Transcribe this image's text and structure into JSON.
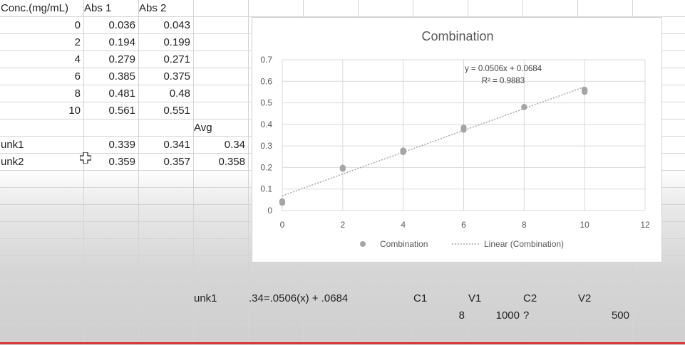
{
  "sheet": {
    "cells": [
      {
        "ref": "A1",
        "text": "Conc.(mg/mL)",
        "align": "l"
      },
      {
        "ref": "B1",
        "text": "Abs 1",
        "align": "l"
      },
      {
        "ref": "C1",
        "text": "Abs 2",
        "align": "l"
      },
      {
        "ref": "A2",
        "text": "0",
        "align": "r"
      },
      {
        "ref": "B2",
        "text": "0.036",
        "align": "r"
      },
      {
        "ref": "C2",
        "text": "0.043",
        "align": "r"
      },
      {
        "ref": "A3",
        "text": "2",
        "align": "r"
      },
      {
        "ref": "B3",
        "text": "0.194",
        "align": "r"
      },
      {
        "ref": "C3",
        "text": "0.199",
        "align": "r"
      },
      {
        "ref": "A4",
        "text": "4",
        "align": "r"
      },
      {
        "ref": "B4",
        "text": "0.279",
        "align": "r"
      },
      {
        "ref": "C4",
        "text": "0.271",
        "align": "r"
      },
      {
        "ref": "A5",
        "text": "6",
        "align": "r"
      },
      {
        "ref": "B5",
        "text": "0.385",
        "align": "r"
      },
      {
        "ref": "C5",
        "text": "0.375",
        "align": "r"
      },
      {
        "ref": "A6",
        "text": "8",
        "align": "r"
      },
      {
        "ref": "B6",
        "text": "0.481",
        "align": "r"
      },
      {
        "ref": "C6",
        "text": "0.48",
        "align": "r"
      },
      {
        "ref": "A7",
        "text": "10",
        "align": "r"
      },
      {
        "ref": "B7",
        "text": "0.561",
        "align": "r"
      },
      {
        "ref": "C7",
        "text": "0.551",
        "align": "r"
      },
      {
        "ref": "D8",
        "text": "Avg",
        "align": "l"
      },
      {
        "ref": "A9",
        "text": "unk1",
        "align": "l"
      },
      {
        "ref": "B9",
        "text": "0.339",
        "align": "r"
      },
      {
        "ref": "C9",
        "text": "0.341",
        "align": "r"
      },
      {
        "ref": "D9",
        "text": "0.34",
        "align": "r"
      },
      {
        "ref": "A10",
        "text": "unk2",
        "align": "l"
      },
      {
        "ref": "B10",
        "text": "0.359",
        "align": "r"
      },
      {
        "ref": "C10",
        "text": "0.357",
        "align": "r"
      },
      {
        "ref": "D10",
        "text": "0.358",
        "align": "r"
      },
      {
        "ref": "D18",
        "text": "unk1",
        "align": "l"
      },
      {
        "ref": "E18",
        "text": ".34=.0506(x) + .0684",
        "align": "l"
      },
      {
        "ref": "H18",
        "text": "C1",
        "align": "l"
      },
      {
        "ref": "I18",
        "text": "V1",
        "align": "l"
      },
      {
        "ref": "J18",
        "text": "C2",
        "align": "l"
      },
      {
        "ref": "K18",
        "text": "V2",
        "align": "l"
      },
      {
        "ref": "H19",
        "text": "8",
        "align": "r"
      },
      {
        "ref": "I19",
        "text": "1000",
        "align": "r"
      },
      {
        "ref": "J19",
        "text": "?",
        "align": "l"
      },
      {
        "ref": "K19",
        "text": "500",
        "align": "r"
      }
    ]
  },
  "chart_data": {
    "type": "scatter",
    "title": "Combination",
    "xlabel": "",
    "ylabel": "",
    "xlim": [
      0,
      12
    ],
    "ylim": [
      0,
      0.7
    ],
    "x_ticks": [
      "0",
      "2",
      "4",
      "6",
      "8",
      "10",
      "12"
    ],
    "y_ticks": [
      "0",
      "0.1",
      "0.2",
      "0.3",
      "0.4",
      "0.5",
      "0.6",
      "0.7"
    ],
    "grid": true,
    "legend_position": "bottom",
    "series": [
      {
        "name": "Combination",
        "color": "#a5a5a5",
        "points": [
          [
            0,
            0.036
          ],
          [
            0,
            0.043
          ],
          [
            2,
            0.194
          ],
          [
            2,
            0.199
          ],
          [
            4,
            0.279
          ],
          [
            4,
            0.271
          ],
          [
            6,
            0.385
          ],
          [
            6,
            0.375
          ],
          [
            8,
            0.481
          ],
          [
            8,
            0.48
          ],
          [
            10,
            0.561
          ],
          [
            10,
            0.551
          ]
        ]
      }
    ],
    "trendline": {
      "name": "Linear (Combination)",
      "slope": 0.0506,
      "intercept": 0.0684,
      "x_range": [
        0,
        10
      ],
      "equation": "y = 0.0506x + 0.0684",
      "r_squared": "R² = 0.9883"
    }
  }
}
